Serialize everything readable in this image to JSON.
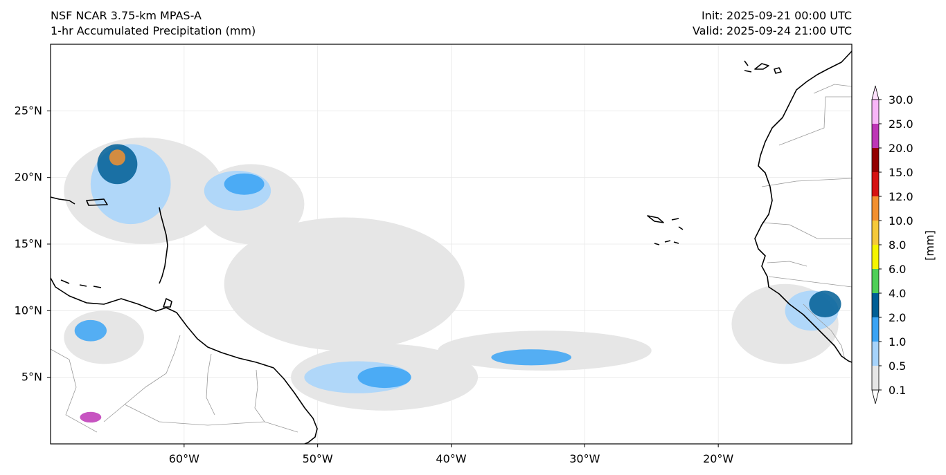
{
  "header": {
    "model": "NSF NCAR 3.75-km MPAS-A",
    "field": "1-hr Accumulated Precipitation (mm)",
    "init": "Init: 2025-09-21 00:00 UTC",
    "valid": "Valid: 2025-09-24 21:00 UTC"
  },
  "map": {
    "lon_range": [
      -70,
      -10
    ],
    "lat_range": [
      0,
      30
    ],
    "lat_ticks": [
      {
        "value": 25,
        "label": "25°N"
      },
      {
        "value": 20,
        "label": "20°N"
      },
      {
        "value": 15,
        "label": "15°N"
      },
      {
        "value": 10,
        "label": "10°N"
      },
      {
        "value": 5,
        "label": "5°N"
      }
    ],
    "lon_ticks": [
      {
        "value": -60,
        "label": "60°W"
      },
      {
        "value": -50,
        "label": "50°W"
      },
      {
        "value": -40,
        "label": "40°W"
      },
      {
        "value": -30,
        "label": "30°W"
      },
      {
        "value": -20,
        "label": "20°W"
      }
    ],
    "precip_regions": [
      {
        "lon": -63,
        "lat": 19,
        "rx": 6,
        "ry": 4,
        "level": 0.1
      },
      {
        "lon": -55,
        "lat": 18,
        "rx": 4,
        "ry": 3,
        "level": 0.1
      },
      {
        "lon": -48,
        "lat": 12,
        "rx": 9,
        "ry": 5,
        "level": 0.1
      },
      {
        "lon": -45,
        "lat": 5,
        "rx": 7,
        "ry": 2.5,
        "level": 0.1
      },
      {
        "lon": -33,
        "lat": 7,
        "rx": 8,
        "ry": 1.5,
        "level": 0.1
      },
      {
        "lon": -15,
        "lat": 9,
        "rx": 4,
        "ry": 3,
        "level": 0.1
      },
      {
        "lon": -66,
        "lat": 8,
        "rx": 3,
        "ry": 2,
        "level": 0.1
      },
      {
        "lon": -64,
        "lat": 19.5,
        "rx": 3,
        "ry": 3,
        "level": 0.5
      },
      {
        "lon": -56,
        "lat": 19,
        "rx": 2.5,
        "ry": 1.5,
        "level": 0.5
      },
      {
        "lon": -47,
        "lat": 5,
        "rx": 4,
        "ry": 1.2,
        "level": 0.5
      },
      {
        "lon": -13,
        "lat": 10,
        "rx": 2,
        "ry": 1.5,
        "level": 0.5
      },
      {
        "lon": -65,
        "lat": 21,
        "rx": 1.5,
        "ry": 1.5,
        "level": 2.0
      },
      {
        "lon": -55.5,
        "lat": 19.5,
        "rx": 1.5,
        "ry": 0.8,
        "level": 1.0
      },
      {
        "lon": -45,
        "lat": 5,
        "rx": 2,
        "ry": 0.8,
        "level": 1.0
      },
      {
        "lon": -34,
        "lat": 6.5,
        "rx": 3,
        "ry": 0.6,
        "level": 1.0
      },
      {
        "lon": -67,
        "lat": 8.5,
        "rx": 1.2,
        "ry": 0.8,
        "level": 1.0
      },
      {
        "lon": -12,
        "lat": 10.5,
        "rx": 1.2,
        "ry": 1,
        "level": 2.0
      },
      {
        "lon": -65,
        "lat": 21.5,
        "rx": 0.6,
        "ry": 0.6,
        "level": 10.0
      },
      {
        "lon": -67,
        "lat": 2,
        "rx": 0.8,
        "ry": 0.4,
        "level": 20.0
      }
    ]
  },
  "colorbar": {
    "unit_label": "[mm]",
    "levels": [
      "0.1",
      "0.5",
      "1.0",
      "2.0",
      "4.0",
      "6.0",
      "8.0",
      "10.0",
      "12.0",
      "15.0",
      "20.0",
      "25.0",
      "30.0"
    ],
    "colors": [
      "#e6e6e6",
      "#a6d3fb",
      "#3aa3f4",
      "#005e95",
      "#4fcf57",
      "#f5f500",
      "#f5c93a",
      "#f39030",
      "#d61212",
      "#930000",
      "#bd36b6",
      "#f8b6f7"
    ],
    "under_color": "#ffffff",
    "over_color": "#fde0fc"
  },
  "colors": {
    "coastline": "#000000",
    "borders": "#999999",
    "grid": "#e8e8e8",
    "frame": "#000000"
  }
}
